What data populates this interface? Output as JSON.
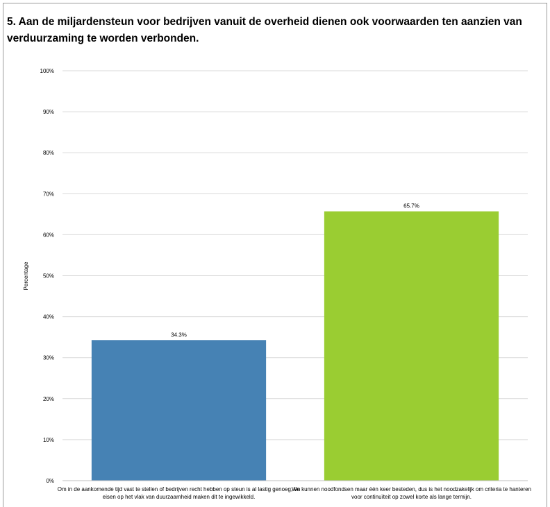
{
  "chart_data": {
    "type": "bar",
    "title": "5. Aan de miljardensteun voor bedrijven vanuit de overheid dienen ook voorwaarden ten aanzien van verduurzaming te worden verbonden.",
    "ylabel": "Percentage",
    "xlabel": "",
    "ylim": [
      0,
      100
    ],
    "yticks": [
      "0%",
      "10%",
      "20%",
      "30%",
      "40%",
      "50%",
      "60%",
      "70%",
      "80%",
      "90%",
      "100%"
    ],
    "grid": true,
    "categories": [
      "Om in de aankomende tijd vast te stellen of bedrijven recht hebben op steun is al lastig genoeg, en eisen op het vlak van duurzaamheid maken dit te ingewikkeld.",
      "We kunnen noodfondsen maar één keer besteden, dus is het noodzakelijk om criteria te hanteren voor continuïteit op zowel korte als lange termijn."
    ],
    "values": [
      34.3,
      65.7
    ],
    "data_labels": [
      "34.3%",
      "65.7%"
    ],
    "colors": [
      "#4682b4",
      "#9acd32"
    ]
  }
}
